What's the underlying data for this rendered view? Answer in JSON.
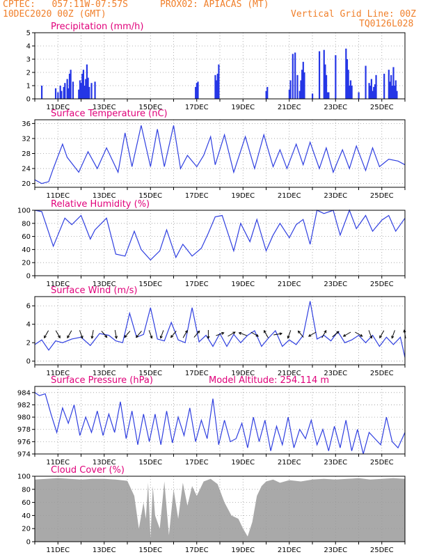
{
  "header": {
    "line1_left": "CPTEC:   057:11W-07:57S",
    "line1_mid": "PROX02: APIACAS (MT)",
    "line2_left": "10DEC2020 00Z (GMT)",
    "line2_right": "Vertical Grid Line: 00Z",
    "line3_right": "TQ0126L028"
  },
  "colors": {
    "header": "#f07f2a",
    "title": "#e0007a",
    "line": "#2f3fe0",
    "bar": "#2536e6",
    "cloud": "#a9a9a9",
    "grid": "#9a9a9a"
  },
  "x_ticks": [
    "11DEC",
    "13DEC",
    "15DEC",
    "17DEC",
    "19DEC",
    "21DEC",
    "23DEC",
    "25DEC"
  ],
  "chart_data": [
    {
      "id": "precip",
      "type": "bar",
      "title": "Precipitation (mm/h)",
      "x_unit": "days since 10DEC2020 00Z",
      "ylim": [
        0,
        5
      ],
      "yticks": [
        0,
        1,
        2,
        3,
        4,
        5
      ],
      "x": [
        0.3,
        0.9,
        1.0,
        1.1,
        1.15,
        1.25,
        1.3,
        1.4,
        1.45,
        1.5,
        1.55,
        1.65,
        1.9,
        1.95,
        2.0,
        2.05,
        2.1,
        2.15,
        2.2,
        2.25,
        2.3,
        2.35,
        2.45,
        2.6,
        6.95,
        7.0,
        7.05,
        7.8,
        7.85,
        7.9,
        7.95,
        10.0,
        10.05,
        11.0,
        11.05,
        11.15,
        11.25,
        11.35,
        11.45,
        11.5,
        11.55,
        11.6,
        11.65,
        12.0,
        12.3,
        12.5,
        12.55,
        12.6,
        12.65,
        12.7,
        13.0,
        13.45,
        13.5,
        13.55,
        13.6,
        13.65,
        13.7,
        14.0,
        14.3,
        14.45,
        14.5,
        14.55,
        14.6,
        14.65,
        14.7,
        14.75,
        15.1,
        15.3,
        15.35,
        15.4,
        15.45,
        15.5,
        15.55,
        15.6,
        15.65
      ],
      "values": [
        1.0,
        0.8,
        0.5,
        1.0,
        0.6,
        0.9,
        1.2,
        1.5,
        0.8,
        1.9,
        2.2,
        1.3,
        0.7,
        1.4,
        1.2,
        1.9,
        2.2,
        1.0,
        1.5,
        2.6,
        1.6,
        0.9,
        1.2,
        1.3,
        0.9,
        1.2,
        1.3,
        1.8,
        1.4,
        1.9,
        2.6,
        0.6,
        0.9,
        0.7,
        1.4,
        3.4,
        3.5,
        1.8,
        0.6,
        1.4,
        2.2,
        2.8,
        2.0,
        0.4,
        3.6,
        3.7,
        2.6,
        1.8,
        0.5,
        0.5,
        3.3,
        3.8,
        3.0,
        2.2,
        1.0,
        1.4,
        1.0,
        0.5,
        2.5,
        1.2,
        1.0,
        1.5,
        0.6,
        0.9,
        1.1,
        1.8,
        1.9,
        2.2,
        1.3,
        1.8,
        1.0,
        2.4,
        1.0,
        1.4,
        0.6
      ]
    },
    {
      "id": "temp",
      "type": "line",
      "title": "Surface Temperature (nC)",
      "ylim": [
        19,
        37
      ],
      "yticks": [
        20,
        24,
        28,
        32,
        36
      ],
      "x": [
        0.0,
        0.3,
        0.6,
        0.8,
        1.2,
        1.4,
        1.9,
        2.3,
        2.7,
        3.1,
        3.6,
        3.9,
        4.2,
        4.6,
        5.0,
        5.3,
        5.6,
        6.0,
        6.3,
        6.6,
        7.0,
        7.3,
        7.6,
        7.8,
        8.2,
        8.6,
        9.1,
        9.5,
        9.9,
        10.3,
        10.6,
        10.9,
        11.3,
        11.6,
        11.9,
        12.3,
        12.6,
        12.9,
        13.3,
        13.6,
        13.9,
        14.3,
        14.6,
        14.9,
        15.3,
        15.7,
        16.0
      ],
      "values": [
        21.0,
        20.0,
        20.5,
        24.0,
        30.5,
        27.0,
        23.0,
        28.5,
        24.0,
        29.5,
        23.0,
        33.5,
        24.5,
        35.5,
        24.5,
        34.5,
        24.5,
        35.5,
        24.0,
        27.5,
        24.5,
        27.5,
        32.5,
        25.0,
        33.0,
        23.0,
        32.5,
        24.0,
        33.0,
        24.5,
        29.0,
        24.0,
        30.5,
        25.0,
        31.0,
        24.0,
        29.5,
        23.0,
        29.0,
        24.0,
        30.0,
        23.5,
        29.5,
        24.5,
        26.5,
        26.0,
        25.0
      ]
    },
    {
      "id": "rh",
      "type": "line",
      "title": "Relative Humidity (%)",
      "ylim": [
        0,
        100
      ],
      "yticks": [
        0,
        20,
        40,
        60,
        80,
        100
      ],
      "x": [
        0.0,
        0.3,
        0.8,
        1.3,
        1.6,
        2.0,
        2.4,
        2.6,
        3.1,
        3.5,
        3.9,
        4.3,
        4.6,
        5.0,
        5.4,
        5.7,
        6.1,
        6.4,
        6.8,
        7.2,
        7.5,
        7.8,
        8.1,
        8.6,
        8.9,
        9.3,
        9.6,
        10.0,
        10.3,
        10.6,
        11.0,
        11.3,
        11.6,
        11.9,
        12.2,
        12.5,
        12.9,
        13.2,
        13.6,
        13.9,
        14.3,
        14.6,
        15.0,
        15.3,
        15.6,
        16.0
      ],
      "values": [
        100.0,
        98.0,
        45.0,
        88.0,
        78.0,
        92.0,
        56.0,
        70.0,
        88.0,
        33.0,
        30.0,
        68.0,
        40.0,
        24.0,
        38.0,
        70.0,
        28.0,
        48.0,
        30.0,
        42.0,
        65.0,
        90.0,
        92.0,
        38.0,
        80.0,
        52.0,
        86.0,
        38.0,
        62.0,
        80.0,
        58.0,
        78.0,
        86.0,
        48.0,
        100.0,
        95.0,
        100.0,
        62.0,
        100.0,
        72.0,
        92.0,
        68.0,
        85.0,
        92.0,
        68.0,
        88.0
      ]
    },
    {
      "id": "wind",
      "type": "line",
      "title": "Surface Wind (m/s)",
      "ylim": [
        -0.4,
        7
      ],
      "yticks": [
        0,
        2,
        4,
        6
      ],
      "x": [
        0.0,
        0.3,
        0.6,
        0.9,
        1.2,
        1.6,
        2.0,
        2.4,
        2.8,
        3.2,
        3.5,
        3.8,
        4.1,
        4.4,
        4.7,
        5.0,
        5.3,
        5.6,
        5.9,
        6.2,
        6.5,
        6.8,
        7.1,
        7.4,
        7.7,
        8.0,
        8.3,
        8.6,
        8.9,
        9.2,
        9.5,
        9.8,
        10.1,
        10.4,
        10.7,
        11.0,
        11.3,
        11.6,
        11.9,
        12.2,
        12.5,
        12.8,
        13.1,
        13.4,
        13.7,
        14.0,
        14.3,
        14.6,
        14.9,
        15.2,
        15.5,
        15.8,
        16.0
      ],
      "values": [
        1.8,
        2.3,
        1.2,
        2.2,
        2.0,
        2.4,
        2.6,
        1.7,
        3.0,
        2.8,
        2.2,
        2.0,
        5.2,
        2.6,
        2.9,
        5.8,
        2.4,
        2.2,
        4.2,
        2.3,
        2.0,
        5.8,
        2.1,
        2.8,
        1.6,
        3.0,
        1.6,
        2.9,
        2.0,
        2.8,
        3.3,
        1.6,
        2.5,
        3.3,
        1.6,
        2.3,
        1.8,
        2.8,
        6.5,
        2.4,
        2.8,
        2.2,
        3.2,
        2.0,
        2.3,
        2.8,
        2.0,
        2.8,
        1.6,
        2.6,
        1.8,
        2.6,
        0.4
      ]
    },
    {
      "id": "pressure",
      "type": "line",
      "title": "Surface Pressure (hPa)",
      "subtitle": "Model Altitude: 254.114 m",
      "ylim": [
        974,
        985
      ],
      "yticks": [
        974,
        976,
        978,
        980,
        982,
        984
      ],
      "x": [
        0.0,
        0.2,
        0.45,
        0.7,
        0.95,
        1.2,
        1.45,
        1.7,
        1.95,
        2.2,
        2.45,
        2.7,
        2.95,
        3.2,
        3.45,
        3.7,
        3.95,
        4.2,
        4.45,
        4.7,
        4.95,
        5.2,
        5.45,
        5.7,
        5.95,
        6.2,
        6.45,
        6.7,
        6.95,
        7.2,
        7.45,
        7.7,
        7.95,
        8.2,
        8.45,
        8.7,
        8.95,
        9.2,
        9.45,
        9.7,
        9.95,
        10.2,
        10.45,
        10.7,
        10.95,
        11.2,
        11.45,
        11.7,
        11.95,
        12.2,
        12.45,
        12.7,
        12.95,
        13.2,
        13.45,
        13.7,
        13.95,
        14.2,
        14.45,
        14.7,
        14.95,
        15.2,
        15.45,
        15.7,
        16.0
      ],
      "values": [
        984.0,
        983.5,
        983.8,
        980.5,
        977.5,
        981.5,
        979.0,
        982.0,
        977.0,
        980.0,
        977.5,
        981.0,
        977.0,
        980.5,
        977.5,
        982.5,
        976.5,
        981.0,
        975.5,
        980.5,
        976.0,
        980.5,
        975.5,
        981.0,
        975.8,
        980.0,
        977.0,
        981.5,
        976.0,
        979.5,
        976.5,
        983.0,
        975.5,
        979.5,
        976.0,
        976.5,
        979.0,
        975.0,
        980.0,
        976.0,
        979.5,
        974.5,
        978.5,
        975.5,
        980.0,
        975.0,
        978.0,
        976.5,
        979.5,
        975.5,
        978.0,
        974.5,
        978.5,
        975.0,
        979.5,
        974.5,
        978.0,
        974.0,
        977.5,
        976.5,
        975.5,
        980.0,
        976.0,
        975.0,
        977.5
      ]
    },
    {
      "id": "cloud",
      "type": "area",
      "title": "Cloud Cover (%)",
      "ylim": [
        0,
        100
      ],
      "yticks": [
        0,
        20,
        40,
        60,
        80,
        100
      ],
      "x": [
        0.0,
        0.5,
        1.0,
        1.5,
        2.0,
        2.5,
        3.0,
        3.5,
        4.0,
        4.3,
        4.5,
        4.7,
        4.8,
        4.9,
        5.0,
        5.1,
        5.2,
        5.4,
        5.6,
        5.8,
        6.0,
        6.2,
        6.4,
        6.6,
        6.8,
        7.0,
        7.3,
        7.6,
        7.9,
        8.2,
        8.5,
        8.8,
        9.0,
        9.2,
        9.4,
        9.6,
        9.8,
        10.0,
        10.3,
        10.6,
        11.0,
        11.5,
        12.0,
        12.5,
        13.0,
        13.5,
        14.0,
        14.5,
        15.0,
        15.5,
        16.0
      ],
      "values": [
        95.0,
        96.0,
        97.0,
        96.0,
        95.0,
        96.0,
        96.0,
        95.0,
        93.0,
        70.0,
        20.0,
        60.0,
        35.0,
        90.0,
        5.0,
        85.0,
        40.0,
        20.0,
        92.0,
        10.0,
        80.0,
        35.0,
        90.0,
        55.0,
        85.0,
        70.0,
        92.0,
        96.0,
        88.0,
        60.0,
        40.0,
        35.0,
        20.0,
        8.0,
        30.0,
        70.0,
        85.0,
        92.0,
        95.0,
        90.0,
        94.0,
        92.0,
        95.0,
        96.0,
        95.0,
        96.0,
        97.0,
        95.0,
        96.0,
        97.0,
        96.0
      ]
    },
    {
      "id": "wind_arrows",
      "type": "scatter",
      "title": "Surface Wind (m/s)",
      "x": [
        0.5,
        1.0,
        1.5,
        2.0,
        2.5,
        3.0,
        3.5,
        4.0,
        4.5,
        5.0,
        5.5,
        6.0,
        6.5,
        7.0,
        7.5,
        8.0,
        8.5,
        9.0,
        9.5,
        10.0,
        10.5,
        11.0,
        11.5,
        12.0,
        12.5,
        13.0,
        13.5,
        14.0,
        14.5,
        15.0,
        15.5,
        16.0
      ],
      "values": [
        210,
        150,
        210,
        160,
        190,
        140,
        170,
        220,
        220,
        160,
        200,
        220,
        30,
        40,
        180,
        70,
        60,
        290,
        120,
        330,
        80,
        200,
        320,
        240,
        30,
        50,
        240,
        120,
        160,
        210,
        200,
        350
      ]
    }
  ]
}
